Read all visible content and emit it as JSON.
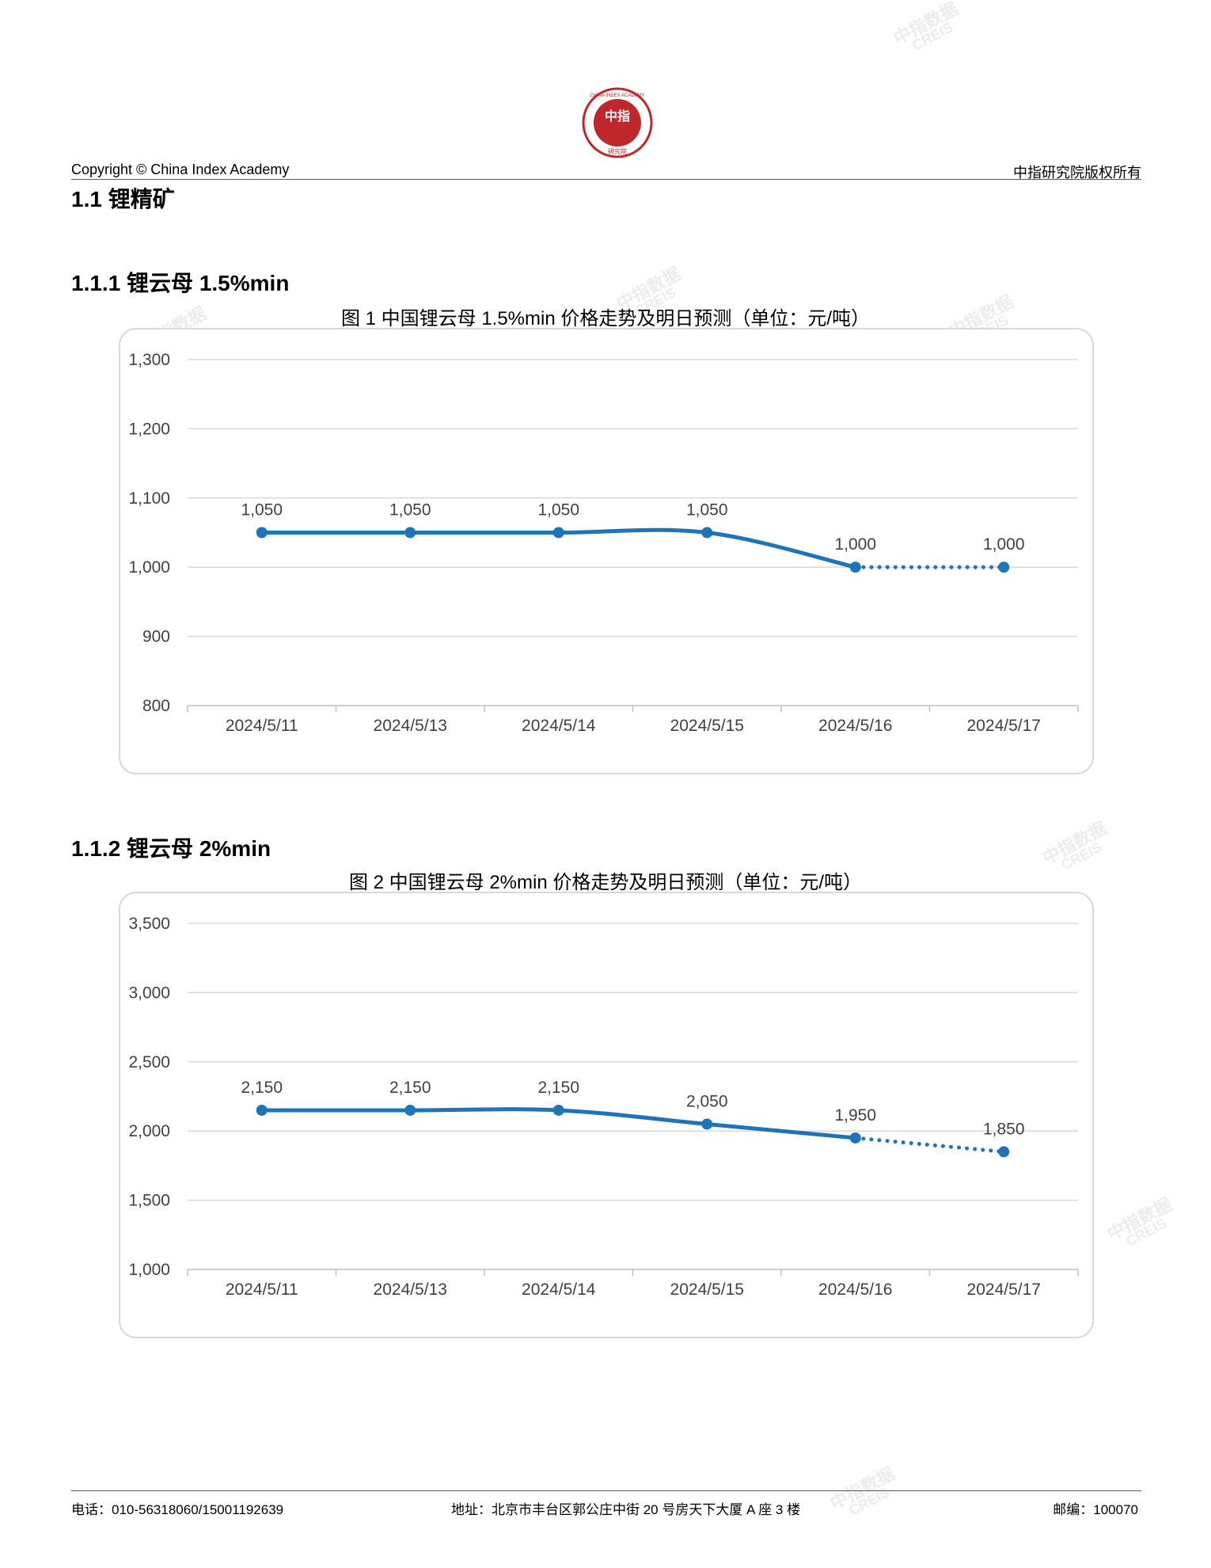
{
  "header": {
    "copyright": "Copyright © China Index Academy",
    "rights": "中指研究院版权所有",
    "logo_top_text": "CHINA INDEX ACADEMY",
    "logo_center": "中指",
    "logo_bottom": "研究院"
  },
  "section": {
    "h1": "1.1 锂精矿",
    "h2a": "1.1.1 锂云母 1.5%min",
    "h2b": "1.1.2 锂云母 2%min"
  },
  "chart_data": [
    {
      "type": "line",
      "title": "图 1 中国锂云母 1.5%min 价格走势及明日预测（单位：元/吨）",
      "categories": [
        "2024/5/11",
        "2024/5/13",
        "2024/5/14",
        "2024/5/15",
        "2024/5/16",
        "2024/5/17"
      ],
      "series": [
        {
          "values": [
            1050,
            1050,
            1050,
            1050,
            1000,
            1000
          ],
          "forecast_from_index": 4
        }
      ],
      "data_labels": [
        "1,050",
        "1,050",
        "1,050",
        "1,050",
        "1,000",
        "1,000"
      ],
      "ylim": [
        800,
        1300
      ],
      "yticks": [
        800,
        900,
        1000,
        1100,
        1200,
        1300
      ],
      "ytick_labels": [
        "800",
        "900",
        "1,000",
        "1,100",
        "1,200",
        "1,300"
      ],
      "grid": true,
      "color": "#1f73b7"
    },
    {
      "type": "line",
      "title": "图 2 中国锂云母 2%min 价格走势及明日预测（单位：元/吨）",
      "categories": [
        "2024/5/11",
        "2024/5/13",
        "2024/5/14",
        "2024/5/15",
        "2024/5/16",
        "2024/5/17"
      ],
      "series": [
        {
          "values": [
            2150,
            2150,
            2150,
            2050,
            1950,
            1850
          ],
          "forecast_from_index": 4
        }
      ],
      "data_labels": [
        "2,150",
        "2,150",
        "2,150",
        "2,050",
        "1,950",
        "1,850"
      ],
      "ylim": [
        1000,
        3500
      ],
      "yticks": [
        1000,
        1500,
        2000,
        2500,
        3000,
        3500
      ],
      "ytick_labels": [
        "1,000",
        "1,500",
        "2,000",
        "2,500",
        "3,000",
        "3,500"
      ],
      "grid": true,
      "color": "#1f73b7"
    }
  ],
  "footer": {
    "phone": "电话：010-56318060/15001192639",
    "address": "地址：北京市丰台区郭公庄中街 20 号房天下大厦 A 座 3 楼",
    "postcode": "邮编：100070"
  },
  "watermark": {
    "cn": "中指数据",
    "en": "CREIS"
  }
}
